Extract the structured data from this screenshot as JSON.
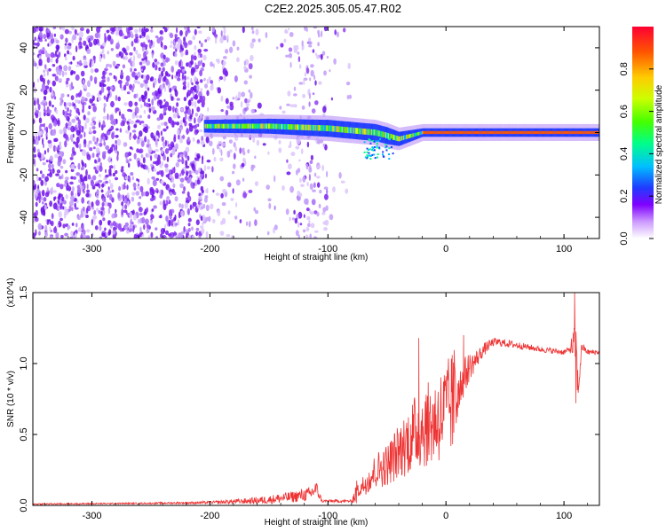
{
  "title": "C2E2.2025.305.05.47.R02",
  "colors": {
    "spectrogram_noise": "#8a3cf0",
    "spectrogram_noise_light": "#d9c2fb",
    "snr_line": "#ee3333",
    "axis": "#000000"
  },
  "chart_data": [
    {
      "type": "heatmap",
      "title": "C2E2.2025.305.05.47.R02",
      "xlabel": "Height of straight line (km)",
      "ylabel": "Frequency (Hz)",
      "xlim": [
        -350,
        130
      ],
      "ylim": [
        -50,
        50
      ],
      "x_ticks": [
        -300,
        -200,
        -100,
        0,
        100
      ],
      "y_ticks": [
        -40,
        -20,
        0,
        20,
        40
      ],
      "x_tick_labels": [
        "-300",
        "-200",
        "-100",
        "0",
        "100"
      ],
      "y_tick_labels": [
        "-40",
        "-20",
        "0",
        "20",
        "40"
      ],
      "colorbar": {
        "label": "Normalized spectral amplitude",
        "range": [
          0,
          1
        ],
        "ticks": [
          0.0,
          0.2,
          0.4,
          0.6,
          0.8
        ],
        "tick_labels": [
          "0.0",
          "0.2",
          "0.4",
          "0.6",
          "0.8"
        ],
        "colormap": "rainbow"
      },
      "signal_band": {
        "x_start": -205,
        "x_end": 130,
        "center_hz": [
          [
            -205,
            3
          ],
          [
            -150,
            3
          ],
          [
            -100,
            2
          ],
          [
            -60,
            0
          ],
          [
            -40,
            -3
          ],
          [
            -20,
            0
          ],
          [
            0,
            0
          ],
          [
            130,
            0
          ]
        ],
        "half_width_hz": [
          [
            -205,
            3
          ],
          [
            -100,
            4
          ],
          [
            -50,
            4
          ],
          [
            -20,
            2
          ],
          [
            130,
            2
          ]
        ]
      },
      "noise_region": {
        "x_start": -350,
        "x_end": -100
      }
    },
    {
      "type": "line",
      "xlabel": "Height of straight line (km)",
      "ylabel": "SNR (10 * v/v)",
      "y_multiplier": "(x10^4)",
      "xlim": [
        -350,
        130
      ],
      "ylim": [
        0,
        1.5
      ],
      "x_ticks": [
        -300,
        -200,
        -100,
        0,
        100
      ],
      "y_ticks": [
        0.0,
        0.5,
        1.0,
        1.5
      ],
      "x_tick_labels": [
        "-300",
        "-200",
        "-100",
        "0",
        "100"
      ],
      "y_tick_labels": [
        "0.0",
        "0.5",
        "1.0",
        "1.5"
      ],
      "series": [
        {
          "color": "#ee3333",
          "envelope_x": [
            -350,
            -250,
            -200,
            -170,
            -150,
            -130,
            -115,
            -110,
            -105,
            -80,
            -75,
            -65,
            -60,
            -55,
            -50,
            -45,
            -40,
            -35,
            -30,
            -25,
            -20,
            -15,
            -10,
            -5,
            0,
            5,
            10,
            15,
            20,
            25,
            30,
            35,
            40,
            45,
            60,
            80,
            100,
            105,
            110,
            112,
            115,
            120,
            130
          ],
          "envelope_y": [
            0.01,
            0.015,
            0.02,
            0.03,
            0.04,
            0.06,
            0.08,
            0.12,
            0.03,
            0.03,
            0.1,
            0.2,
            0.25,
            0.28,
            0.3,
            0.35,
            0.4,
            0.45,
            0.5,
            0.55,
            0.58,
            0.6,
            0.62,
            0.66,
            0.7,
            0.75,
            0.82,
            0.9,
            0.98,
            1.02,
            1.08,
            1.12,
            1.15,
            1.15,
            1.13,
            1.1,
            1.08,
            1.1,
            1.15,
            0.8,
            1.12,
            1.08,
            1.08
          ],
          "noise_amplitude": [
            0.005,
            0.005,
            0.01,
            0.02,
            0.03,
            0.04,
            0.05,
            0.06,
            0.01,
            0.01,
            0.1,
            0.15,
            0.18,
            0.2,
            0.22,
            0.22,
            0.25,
            0.28,
            0.3,
            0.3,
            0.3,
            0.28,
            0.25,
            0.22,
            0.2,
            0.18,
            0.16,
            0.14,
            0.1,
            0.07,
            0.05,
            0.04,
            0.03,
            0.03,
            0.025,
            0.02,
            0.02,
            0.02,
            0.2,
            0.1,
            0.03,
            0.02,
            0.02
          ],
          "annotated_peaks": [
            {
              "x": 109,
              "y": 1.5
            },
            {
              "x": 110,
              "y": 0.72
            },
            {
              "x": 15,
              "y": 1.2
            },
            {
              "x": -23,
              "y": 1.18
            }
          ]
        }
      ]
    }
  ]
}
